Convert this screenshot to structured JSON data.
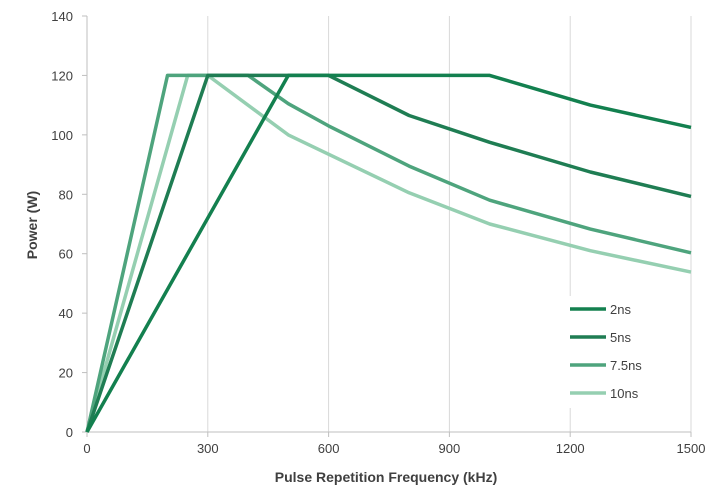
{
  "chart_data": {
    "type": "line",
    "xlabel": "Pulse Repetition Frequency (kHz)",
    "ylabel": "Power (W)",
    "xlim": [
      0,
      1500
    ],
    "ylim": [
      0,
      140
    ],
    "xticks": [
      0,
      300,
      600,
      900,
      1200,
      1500
    ],
    "yticks": [
      0,
      20,
      40,
      60,
      80,
      100,
      120,
      140
    ],
    "grid": "vertical",
    "legend_position": "bottom-right",
    "series": [
      {
        "name": "2ns",
        "color": "#13804f",
        "points": [
          [
            0,
            0
          ],
          [
            500,
            120
          ],
          [
            1000,
            120
          ],
          [
            1250,
            110
          ],
          [
            1500,
            102.5
          ]
        ]
      },
      {
        "name": "5ns",
        "color": "#1f7d53",
        "points": [
          [
            0,
            0
          ],
          [
            300,
            120
          ],
          [
            600,
            120
          ],
          [
            800,
            106.5
          ],
          [
            1000,
            97.5
          ],
          [
            1250,
            87.5
          ],
          [
            1500,
            79.3
          ]
        ]
      },
      {
        "name": "7.5ns",
        "color": "#4ea47d",
        "points": [
          [
            0,
            0
          ],
          [
            200,
            120
          ],
          [
            400,
            120
          ],
          [
            500,
            110.5
          ],
          [
            600,
            103
          ],
          [
            800,
            89.5
          ],
          [
            1000,
            78
          ],
          [
            1250,
            68.3
          ],
          [
            1500,
            60.3
          ]
        ]
      },
      {
        "name": "10ns",
        "color": "#95cfb1",
        "points": [
          [
            0,
            0
          ],
          [
            250,
            120
          ],
          [
            300,
            120
          ],
          [
            500,
            100
          ],
          [
            800,
            80.5
          ],
          [
            1000,
            70
          ],
          [
            1250,
            61
          ],
          [
            1500,
            53.8
          ]
        ]
      }
    ]
  }
}
